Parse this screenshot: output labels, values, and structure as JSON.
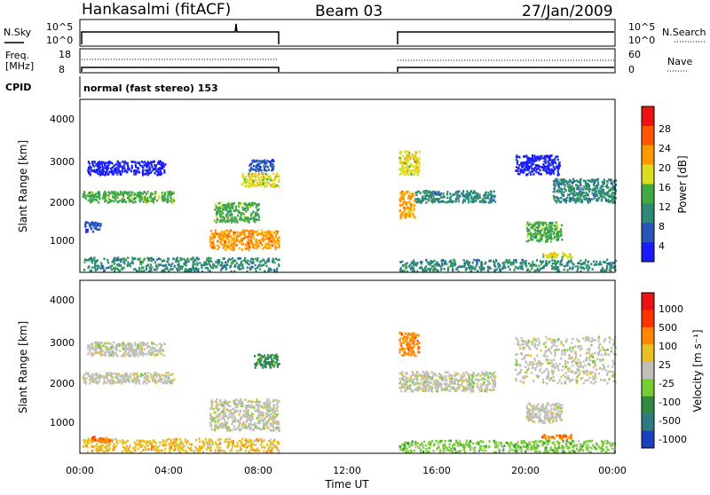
{
  "header": {
    "station": "Hankasalmi (fitACF)",
    "beam": "Beam 03",
    "date": "27/Jan/2009"
  },
  "noise_panel": {
    "left_label": "N.Sky",
    "right_label": "N.Search",
    "left_ticks": [
      "10^5",
      "10^0"
    ],
    "right_ticks": [
      "10^5",
      "10^0"
    ]
  },
  "freq_panel": {
    "left_label_1": "Freq.",
    "left_label_2": "[MHz]",
    "right_label": "Nave",
    "left_ticks": [
      "18",
      "8"
    ],
    "right_ticks": [
      "60",
      "0"
    ]
  },
  "cpid": {
    "label": "CPID",
    "mode": "normal (fast stereo) 153"
  },
  "x_axis": {
    "title": "Time UT",
    "ticks": [
      "00:00",
      "04:00",
      "08:00",
      "12:00",
      "16:00",
      "20:00",
      "00:00"
    ]
  },
  "y_axis": {
    "title": "Slant Range [km]",
    "ticks": [
      "4000",
      "3000",
      "2000",
      "1000"
    ]
  },
  "power_scale": {
    "title": "Power [dB]",
    "ticks": [
      "28",
      "24",
      "20",
      "16",
      "12",
      "8",
      "4"
    ],
    "colors": [
      "#1a1aff",
      "#2a55b8",
      "#2e8a78",
      "#40aa40",
      "#dddd20",
      "#ff9900",
      "#ff5500",
      "#ee1111"
    ]
  },
  "velocity_scale": {
    "title": "Velocity [m s⁻¹]",
    "ticks": [
      "1000",
      "500",
      "100",
      "25",
      "-25",
      "-100",
      "-500",
      "-1000"
    ],
    "colors": [
      "#1a3fbf",
      "#2e7a80",
      "#2e8a40",
      "#77cc33",
      "#c0c0b8",
      "#e8c020",
      "#ff8800",
      "#ff3300",
      "#ee1111"
    ]
  },
  "chart_data": {
    "type": "heatmap",
    "x_unit": "hours UT",
    "xlim": [
      0,
      24
    ],
    "ylim": [
      200,
      4600
    ],
    "data_gap_hours": [
      8.9,
      14.3
    ],
    "power_regions": [
      {
        "t0": 0.1,
        "t1": 4.2,
        "r0": 2000,
        "r1": 2280,
        "level": 3
      },
      {
        "t0": 0.3,
        "t1": 3.8,
        "r0": 2700,
        "r1": 3050,
        "level": 0
      },
      {
        "t0": 0.2,
        "t1": 0.9,
        "r0": 1250,
        "r1": 1500,
        "level": 1
      },
      {
        "t0": 0.1,
        "t1": 8.9,
        "r0": 250,
        "r1": 600,
        "level": 2
      },
      {
        "t0": 5.8,
        "t1": 8.9,
        "r0": 800,
        "r1": 1300,
        "level": 5
      },
      {
        "t0": 6.0,
        "t1": 8.0,
        "r0": 1500,
        "r1": 2000,
        "level": 3
      },
      {
        "t0": 7.2,
        "t1": 8.9,
        "r0": 2400,
        "r1": 2750,
        "level": 4
      },
      {
        "t0": 7.5,
        "t1": 8.7,
        "r0": 2800,
        "r1": 3100,
        "level": 1
      },
      {
        "t0": 14.3,
        "t1": 15.0,
        "r0": 1600,
        "r1": 2300,
        "level": 5
      },
      {
        "t0": 14.3,
        "t1": 15.2,
        "r0": 2700,
        "r1": 3300,
        "level": 4
      },
      {
        "t0": 15.0,
        "t1": 18.6,
        "r0": 2000,
        "r1": 2300,
        "level": 2
      },
      {
        "t0": 14.3,
        "t1": 24.0,
        "r0": 250,
        "r1": 550,
        "level": 2
      },
      {
        "t0": 20.7,
        "t1": 22.0,
        "r0": 600,
        "r1": 720,
        "level": 4
      },
      {
        "t0": 20.0,
        "t1": 21.6,
        "r0": 1000,
        "r1": 1500,
        "level": 3
      },
      {
        "t0": 19.5,
        "t1": 21.5,
        "r0": 2700,
        "r1": 3200,
        "level": 0
      },
      {
        "t0": 21.2,
        "t1": 24.0,
        "r0": 2000,
        "r1": 2600,
        "level": 2
      }
    ],
    "velocity_regions": [
      {
        "t0": 0.1,
        "t1": 4.2,
        "r0": 2000,
        "r1": 2280,
        "level": 4
      },
      {
        "t0": 0.3,
        "t1": 3.8,
        "r0": 2700,
        "r1": 3050,
        "level": 4
      },
      {
        "t0": 0.1,
        "t1": 8.9,
        "r0": 250,
        "r1": 600,
        "level": 5
      },
      {
        "t0": 0.5,
        "t1": 1.3,
        "r0": 500,
        "r1": 650,
        "level": 6
      },
      {
        "t0": 5.8,
        "t1": 8.9,
        "r0": 800,
        "r1": 1600,
        "level": 4
      },
      {
        "t0": 7.8,
        "t1": 8.9,
        "r0": 2400,
        "r1": 2750,
        "level": 2
      },
      {
        "t0": 14.3,
        "t1": 15.2,
        "r0": 2700,
        "r1": 3300,
        "level": 6
      },
      {
        "t0": 14.3,
        "t1": 18.6,
        "r0": 1800,
        "r1": 2300,
        "level": 4
      },
      {
        "t0": 14.3,
        "t1": 24.0,
        "r0": 250,
        "r1": 550,
        "level": 3
      },
      {
        "t0": 20.7,
        "t1": 22.0,
        "r0": 580,
        "r1": 700,
        "level": 6
      },
      {
        "t0": 20.0,
        "t1": 21.6,
        "r0": 1000,
        "r1": 1500,
        "level": 4
      },
      {
        "t0": 19.5,
        "t1": 24.0,
        "r0": 2000,
        "r1": 3200,
        "level": 4
      }
    ]
  }
}
